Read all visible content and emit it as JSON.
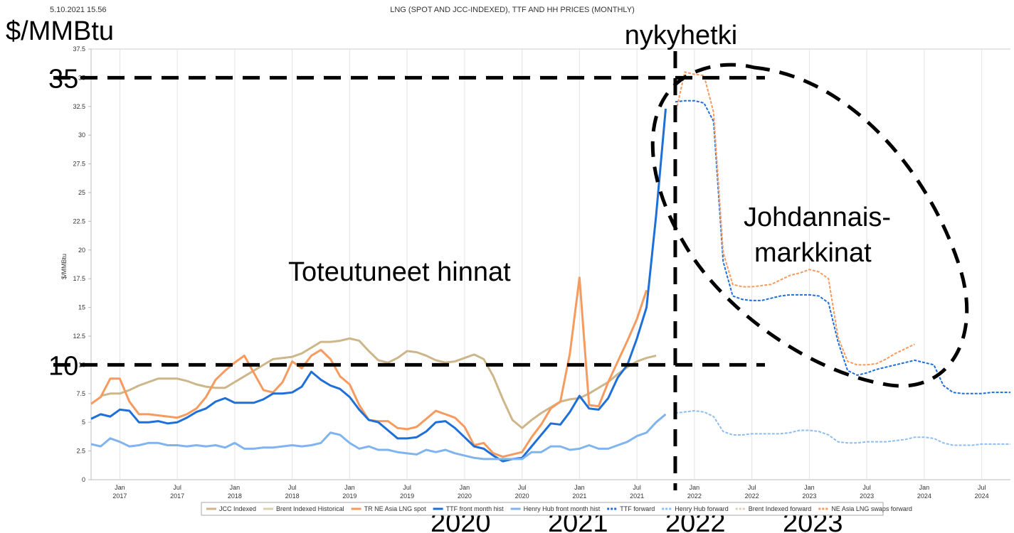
{
  "chart_data": {
    "type": "line",
    "timestamp": "5.10.2021 15.56",
    "title": "LNG (SPOT AND JCC-INDEXED), TTF AND HH PRICES (MONTHLY)",
    "ylabel": "$/MMBtu",
    "ylim": [
      0,
      37.5
    ],
    "yticks": [
      0,
      2.5,
      5,
      7.5,
      10,
      12.5,
      15,
      17.5,
      20,
      22.5,
      25,
      27.5,
      30,
      32.5,
      35,
      37.5
    ],
    "xlim": [
      "2016-10",
      "2024-10"
    ],
    "xticks": [
      {
        "value": "2017-01",
        "label": "Jan",
        "year": "2017"
      },
      {
        "value": "2017-07",
        "label": "Jul",
        "year": "2017"
      },
      {
        "value": "2018-01",
        "label": "Jan",
        "year": "2018"
      },
      {
        "value": "2018-07",
        "label": "Jul",
        "year": "2018"
      },
      {
        "value": "2019-01",
        "label": "Jan",
        "year": "2019"
      },
      {
        "value": "2019-07",
        "label": "Jul",
        "year": "2019"
      },
      {
        "value": "2020-01",
        "label": "Jan",
        "year": "2020"
      },
      {
        "value": "2020-07",
        "label": "Jul",
        "year": "2020"
      },
      {
        "value": "2021-01",
        "label": "Jan",
        "year": "2021"
      },
      {
        "value": "2021-07",
        "label": "Jul",
        "year": "2021"
      },
      {
        "value": "2022-01",
        "label": "Jan",
        "year": "2022"
      },
      {
        "value": "2022-07",
        "label": "Jul",
        "year": "2022"
      },
      {
        "value": "2023-01",
        "label": "Jan",
        "year": "2023"
      },
      {
        "value": "2023-07",
        "label": "Jul",
        "year": "2023"
      },
      {
        "value": "2024-01",
        "label": "Jan",
        "year": "2024"
      },
      {
        "value": "2024-07",
        "label": "Jul",
        "year": "2024"
      }
    ],
    "grid": "x",
    "legend": "bottom",
    "x": [
      "2016-10",
      "2016-11",
      "2016-12",
      "2017-01",
      "2017-02",
      "2017-03",
      "2017-04",
      "2017-05",
      "2017-06",
      "2017-07",
      "2017-08",
      "2017-09",
      "2017-10",
      "2017-11",
      "2017-12",
      "2018-01",
      "2018-02",
      "2018-03",
      "2018-04",
      "2018-05",
      "2018-06",
      "2018-07",
      "2018-08",
      "2018-09",
      "2018-10",
      "2018-11",
      "2018-12",
      "2019-01",
      "2019-02",
      "2019-03",
      "2019-04",
      "2019-05",
      "2019-06",
      "2019-07",
      "2019-08",
      "2019-09",
      "2019-10",
      "2019-11",
      "2019-12",
      "2020-01",
      "2020-02",
      "2020-03",
      "2020-04",
      "2020-05",
      "2020-06",
      "2020-07",
      "2020-08",
      "2020-09",
      "2020-10",
      "2020-11",
      "2020-12",
      "2021-01",
      "2021-02",
      "2021-03",
      "2021-04",
      "2021-05",
      "2021-06",
      "2021-07",
      "2021-08",
      "2021-09",
      "2021-10",
      "2021-11",
      "2021-12",
      "2022-01",
      "2022-02",
      "2022-03",
      "2022-04",
      "2022-05",
      "2022-06",
      "2022-07",
      "2022-08",
      "2022-09",
      "2022-10",
      "2022-11",
      "2022-12",
      "2023-01",
      "2023-02",
      "2023-03",
      "2023-04",
      "2023-05",
      "2023-06",
      "2023-07",
      "2023-08",
      "2023-09",
      "2023-10",
      "2023-11",
      "2023-12",
      "2024-01",
      "2024-02",
      "2024-03",
      "2024-04",
      "2024-05",
      "2024-06",
      "2024-07",
      "2024-08",
      "2024-09",
      "2024-10"
    ],
    "series": [
      {
        "name": "JCC Indexed",
        "color": "#cdb689",
        "style": "solid",
        "values": [
          null,
          7.3,
          7.5,
          7.5,
          7.8,
          8.2,
          8.5,
          8.8,
          8.8,
          8.8,
          8.6,
          8.3,
          8.1,
          8.0,
          8.0,
          8.5,
          9.0,
          9.5,
          10.0,
          10.5,
          10.6,
          10.7,
          11.0,
          11.5,
          12.0,
          12.0,
          12.1,
          12.3,
          12.1,
          11.2,
          10.4,
          10.2,
          10.6,
          11.2,
          11.1,
          10.8,
          10.4,
          10.2,
          10.3,
          10.6,
          10.9,
          10.5,
          9.0,
          7.0,
          5.2,
          4.5,
          5.2,
          5.8,
          6.3,
          6.8,
          7.0,
          7.1,
          7.5,
          8.0,
          8.5,
          9.2,
          9.8,
          10.3,
          10.6,
          10.8,
          null,
          null,
          null,
          null,
          null,
          null,
          null,
          null,
          null,
          null,
          null,
          null,
          null,
          null,
          null,
          null,
          null,
          null,
          null,
          null,
          null,
          null,
          null,
          null,
          null,
          null,
          null,
          null,
          null,
          null,
          null,
          null,
          null,
          null,
          null,
          null,
          null
        ]
      },
      {
        "name": "Brent Indexed Historical",
        "color": "#ddd0b4",
        "style": "solid",
        "values": [
          null,
          null,
          null,
          null,
          null,
          null,
          null,
          null,
          null,
          null,
          null,
          null,
          null,
          null,
          null,
          null,
          null,
          null,
          null,
          null,
          null,
          null,
          null,
          null,
          null,
          null,
          null,
          null,
          null,
          null,
          null,
          null,
          null,
          null,
          null,
          null,
          null,
          null,
          null,
          null,
          null,
          null,
          null,
          null,
          null,
          null,
          null,
          null,
          null,
          null,
          null,
          null,
          null,
          null,
          null,
          null,
          null,
          null,
          null,
          null,
          null,
          null,
          null,
          null,
          null,
          null,
          null,
          null,
          null,
          null,
          null,
          null,
          null,
          null,
          null,
          null,
          null,
          null,
          null,
          null,
          null,
          null,
          null,
          null,
          null,
          null,
          null,
          null,
          null,
          null,
          null,
          null,
          null,
          null,
          null,
          null,
          null
        ]
      },
      {
        "name": "TR NE Asia LNG spot",
        "color": "#f79a5e",
        "style": "solid",
        "values": [
          6.6,
          7.2,
          8.8,
          8.8,
          6.8,
          5.7,
          5.7,
          5.6,
          5.5,
          5.4,
          5.7,
          6.2,
          7.2,
          8.7,
          9.5,
          10.2,
          10.8,
          9.3,
          7.8,
          7.6,
          8.5,
          10.3,
          9.7,
          10.8,
          11.3,
          10.5,
          9.0,
          8.3,
          6.5,
          5.2,
          5.1,
          5.1,
          4.5,
          4.4,
          4.6,
          5.3,
          6.0,
          5.7,
          5.4,
          4.6,
          3.0,
          3.2,
          2.3,
          2.0,
          2.2,
          2.4,
          3.7,
          4.8,
          6.2,
          6.8,
          11.0,
          17.6,
          6.5,
          6.4,
          8.5,
          10.3,
          12.1,
          14.0,
          16.5,
          null,
          null,
          null,
          null,
          null,
          null,
          null,
          null,
          null,
          null,
          null,
          null,
          null,
          null,
          null,
          null,
          null,
          null,
          null,
          null,
          null,
          null,
          null,
          null,
          null,
          null,
          null,
          null,
          null,
          null,
          null,
          null,
          null,
          null,
          null,
          null,
          null,
          null
        ]
      },
      {
        "name": "TTF front month hist",
        "color": "#1f6fd8",
        "style": "solid",
        "values": [
          5.3,
          5.7,
          5.5,
          6.1,
          6.0,
          5.0,
          5.0,
          5.1,
          4.9,
          5.0,
          5.4,
          5.9,
          6.2,
          6.8,
          7.1,
          6.7,
          6.7,
          6.7,
          7.0,
          7.5,
          7.5,
          7.6,
          8.1,
          9.4,
          8.7,
          8.2,
          7.9,
          7.2,
          6.1,
          5.2,
          5.0,
          4.3,
          3.6,
          3.6,
          3.7,
          4.2,
          5.0,
          5.1,
          4.5,
          3.7,
          2.9,
          2.7,
          2.1,
          1.6,
          1.8,
          1.9,
          2.9,
          3.9,
          4.9,
          4.8,
          5.9,
          7.3,
          6.2,
          6.1,
          7.1,
          8.9,
          10.0,
          12.3,
          15.0,
          23.0,
          32.3,
          null,
          null,
          null,
          null,
          null,
          null,
          null,
          null,
          null,
          null,
          null,
          null,
          null,
          null,
          null,
          null,
          null,
          null,
          null,
          null,
          null,
          null,
          null,
          null,
          null,
          null,
          null,
          null,
          null,
          null,
          null,
          null,
          null,
          null,
          null,
          null
        ]
      },
      {
        "name": "Henry Hub front month hist",
        "color": "#80b4ee",
        "style": "solid",
        "values": [
          3.1,
          2.9,
          3.6,
          3.3,
          2.9,
          3.0,
          3.2,
          3.2,
          3.0,
          3.0,
          2.9,
          3.0,
          2.9,
          3.0,
          2.8,
          3.2,
          2.7,
          2.7,
          2.8,
          2.8,
          2.9,
          3.0,
          2.9,
          3.0,
          3.2,
          4.1,
          3.9,
          3.2,
          2.7,
          2.9,
          2.6,
          2.6,
          2.4,
          2.3,
          2.2,
          2.6,
          2.4,
          2.6,
          2.3,
          2.1,
          1.9,
          1.8,
          1.8,
          1.8,
          1.8,
          1.8,
          2.4,
          2.4,
          2.9,
          2.9,
          2.6,
          2.7,
          3.0,
          2.7,
          2.7,
          3.0,
          3.3,
          3.8,
          4.1,
          5.0,
          5.7,
          null,
          null,
          null,
          null,
          null,
          null,
          null,
          null,
          null,
          null,
          null,
          null,
          null,
          null,
          null,
          null,
          null,
          null,
          null,
          null,
          null,
          null,
          null,
          null,
          null,
          null,
          null,
          null,
          null,
          null,
          null,
          null,
          null,
          null,
          null,
          null
        ]
      },
      {
        "name": "TTF forward",
        "color": "#1f6fd8",
        "style": "dashed",
        "values": [
          null,
          null,
          null,
          null,
          null,
          null,
          null,
          null,
          null,
          null,
          null,
          null,
          null,
          null,
          null,
          null,
          null,
          null,
          null,
          null,
          null,
          null,
          null,
          null,
          null,
          null,
          null,
          null,
          null,
          null,
          null,
          null,
          null,
          null,
          null,
          null,
          null,
          null,
          null,
          null,
          null,
          null,
          null,
          null,
          null,
          null,
          null,
          null,
          null,
          null,
          null,
          null,
          null,
          null,
          null,
          null,
          null,
          null,
          null,
          null,
          null,
          32.9,
          33.0,
          33.0,
          32.8,
          31.2,
          19.0,
          16.0,
          15.7,
          15.6,
          15.6,
          15.8,
          16.0,
          16.1,
          16.1,
          16.1,
          16.0,
          15.4,
          12.0,
          9.5,
          9.1,
          9.3,
          9.6,
          9.8,
          10.0,
          10.2,
          10.4,
          10.2,
          10.0,
          8.2,
          7.6,
          7.5,
          7.5,
          7.5,
          7.6,
          7.6,
          7.6
        ]
      },
      {
        "name": "Henry Hub forward",
        "color": "#8fbdf0",
        "style": "dashed",
        "values": [
          null,
          null,
          null,
          null,
          null,
          null,
          null,
          null,
          null,
          null,
          null,
          null,
          null,
          null,
          null,
          null,
          null,
          null,
          null,
          null,
          null,
          null,
          null,
          null,
          null,
          null,
          null,
          null,
          null,
          null,
          null,
          null,
          null,
          null,
          null,
          null,
          null,
          null,
          null,
          null,
          null,
          null,
          null,
          null,
          null,
          null,
          null,
          null,
          null,
          null,
          null,
          null,
          null,
          null,
          null,
          null,
          null,
          null,
          null,
          null,
          null,
          5.8,
          5.9,
          6.0,
          5.9,
          5.5,
          4.2,
          3.9,
          3.9,
          4.0,
          4.0,
          4.0,
          4.0,
          4.1,
          4.3,
          4.3,
          4.2,
          3.9,
          3.3,
          3.2,
          3.2,
          3.3,
          3.3,
          3.3,
          3.4,
          3.5,
          3.7,
          3.7,
          3.6,
          3.2,
          3.0,
          3.0,
          3.0,
          3.1,
          3.1,
          3.1,
          3.1
        ]
      },
      {
        "name": "Brent Indexed forward",
        "color": "#ddd0b4",
        "style": "dashed",
        "values": [
          null,
          null,
          null,
          null,
          null,
          null,
          null,
          null,
          null,
          null,
          null,
          null,
          null,
          null,
          null,
          null,
          null,
          null,
          null,
          null,
          null,
          null,
          null,
          null,
          null,
          null,
          null,
          null,
          null,
          null,
          null,
          null,
          null,
          null,
          null,
          null,
          null,
          null,
          null,
          null,
          null,
          null,
          null,
          null,
          null,
          null,
          null,
          null,
          null,
          null,
          null,
          null,
          null,
          null,
          null,
          null,
          null,
          null,
          null,
          null,
          null,
          null,
          null,
          null,
          null,
          null,
          null,
          null,
          null,
          null,
          null,
          null,
          null,
          null,
          null,
          null,
          null,
          null,
          null,
          null,
          null,
          null,
          null,
          null,
          null,
          null,
          null,
          null,
          null,
          null,
          null,
          null,
          null,
          null,
          null,
          null,
          null
        ]
      },
      {
        "name": "NE Asia LNG swaps forward",
        "color": "#f79a5e",
        "style": "dashed",
        "values": [
          null,
          null,
          null,
          null,
          null,
          null,
          null,
          null,
          null,
          null,
          null,
          null,
          null,
          null,
          null,
          null,
          null,
          null,
          null,
          null,
          null,
          null,
          null,
          null,
          null,
          null,
          null,
          null,
          null,
          null,
          null,
          null,
          null,
          null,
          null,
          null,
          null,
          null,
          null,
          null,
          null,
          null,
          null,
          null,
          null,
          null,
          null,
          null,
          null,
          null,
          null,
          null,
          null,
          null,
          null,
          null,
          null,
          null,
          null,
          null,
          null,
          31.8,
          35.5,
          35.3,
          35.2,
          32.0,
          19.8,
          17.0,
          16.8,
          16.8,
          16.9,
          17.0,
          17.4,
          17.8,
          18.0,
          18.3,
          18.1,
          17.5,
          12.4,
          10.3,
          10.0,
          10.0,
          10.1,
          10.5,
          11.0,
          11.4,
          11.8,
          null,
          null,
          null,
          null,
          null,
          null,
          null,
          null,
          null,
          null
        ]
      }
    ],
    "overlay": {
      "unit": "$/MMBtu",
      "now": {
        "label": "nykyhetki",
        "x": "2021-11"
      },
      "reference_lines": [
        35,
        10
      ],
      "realized": "Toteutuneet hinnat",
      "derivatives": [
        "Johdannais-",
        "markkinat"
      ],
      "years": [
        "2020",
        "2021",
        "2022",
        "2023"
      ]
    }
  }
}
